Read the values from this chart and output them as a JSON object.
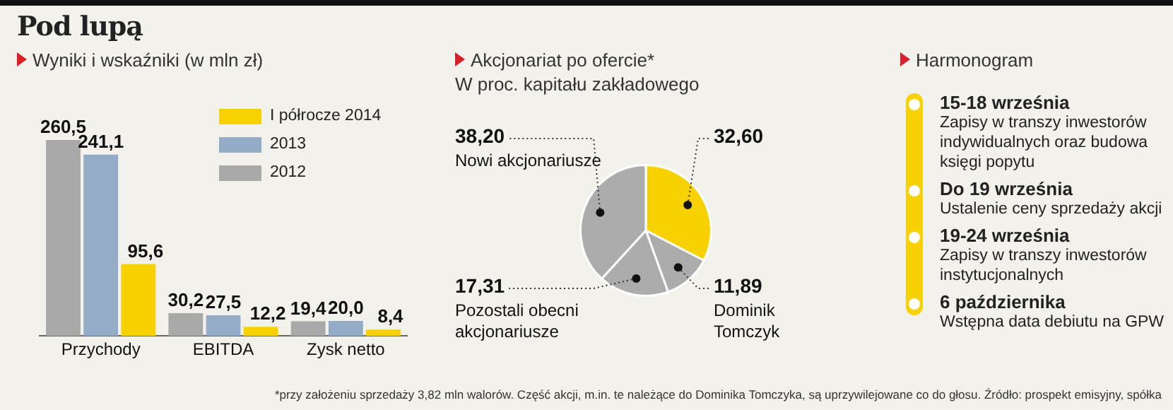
{
  "chart_data": [
    {
      "type": "bar",
      "title": "Pod lupą",
      "subtitle": "Wyniki i wskaźniki (w mln zł)",
      "categories": [
        "Przychody",
        "EBITDA",
        "Zysk netto"
      ],
      "series": [
        {
          "name": "2012",
          "color": "#a9a9a9",
          "values": [
            260.5,
            30.2,
            19.4
          ],
          "value_labels": [
            "260,5",
            "30,2",
            "19,4"
          ]
        },
        {
          "name": "2013",
          "color": "#94acc8",
          "values": [
            241.1,
            27.5,
            20.0
          ],
          "value_labels": [
            "241,1",
            "27,5",
            "20,0"
          ]
        },
        {
          "name": "I półrocze 2014",
          "color": "#f7d100",
          "values": [
            95.6,
            12.2,
            8.4
          ],
          "value_labels": [
            "95,6",
            "12,2",
            "8,4"
          ]
        }
      ],
      "legend": "top right",
      "grid": false,
      "tick_labels": "x",
      "annotations": [
        "*przy założeniu sprzedaży 3,82 mln walorów. Część akcji, m.in. te należące do Dominika Tomczyka, są uprzywilejowane co do głosu. Źródło: prospekt emisyjny, spółka"
      ]
    },
    {
      "type": "pie",
      "title": "Akcjonariat po ofercie*",
      "subtitle": "W proc. kapitału zakładowego",
      "categories": [
        null,
        "Dominik Tomczyk",
        "Pozostali obecni akcjonariusze",
        "Nowi akcjonariusze"
      ],
      "values": [
        32.6,
        11.89,
        17.31,
        38.2
      ],
      "value_labels": [
        "32,60",
        "11,89",
        "17,31",
        "38,20"
      ],
      "colors": [
        "#f7d100",
        "#acacac",
        "#acacac",
        "#acacac"
      ],
      "legend": false
    },
    {
      "type": "other",
      "title": "Harmonogram",
      "annotations": [
        "15-18 września",
        "Zapisy w transzy inwestorów indywidualnych oraz budowa księgi popytu",
        "Do 19 września",
        "Ustalenie ceny sprzedaży akcji",
        "19-24 września",
        "Zapisy w transzy inwestorów instytucjonalnych",
        "6 października",
        "Wstępna data debiutu na GPW"
      ]
    }
  ]
}
